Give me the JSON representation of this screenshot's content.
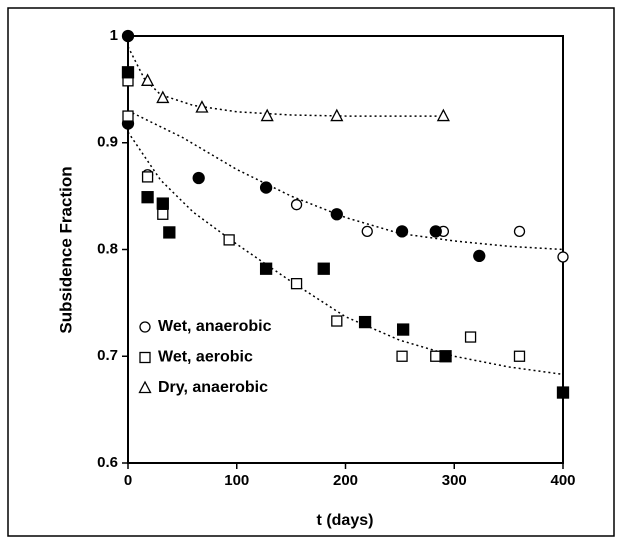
{
  "chart_data": {
    "type": "scatter",
    "y_label": "Subsidence Fraction",
    "x_label": "t (days)",
    "xlim": [
      0,
      400
    ],
    "xticks": [
      0,
      100,
      200,
      300,
      400
    ],
    "ylim": [
      0.6,
      1
    ],
    "yticks": [
      0.6,
      0.7,
      0.8,
      0.9,
      1
    ],
    "grid": false,
    "legend": "left",
    "series": [
      {
        "name": "Wet, anaerobic",
        "marker": "circle",
        "color": "#000000",
        "x": [
          18,
          155,
          220,
          290,
          360,
          400
        ],
        "values": [
          0.87,
          0.842,
          0.817,
          0.817,
          0.817,
          0.793
        ],
        "solid_x": [
          0,
          0,
          65,
          127,
          192,
          252,
          283,
          323
        ],
        "solid_values": [
          1.0,
          0.918,
          0.867,
          0.858,
          0.833,
          0.817,
          0.817,
          0.794
        ],
        "trend_x": [
          0,
          50,
          100,
          150,
          200,
          250,
          300,
          350,
          400
        ],
        "trend_values": [
          0.93,
          0.905,
          0.875,
          0.85,
          0.83,
          0.815,
          0.808,
          0.803,
          0.8
        ]
      },
      {
        "name": "Wet, aerobic",
        "marker": "square",
        "color": "#000000",
        "x": [
          0,
          0,
          18,
          32,
          93,
          155,
          192,
          252,
          283,
          315,
          360
        ],
        "values": [
          0.958,
          0.925,
          0.868,
          0.833,
          0.809,
          0.768,
          0.733,
          0.7,
          0.7,
          0.718,
          0.7
        ],
        "solid_x": [
          0,
          18,
          32,
          38,
          127,
          180,
          218,
          253,
          292,
          400
        ],
        "solid_values": [
          0.966,
          0.849,
          0.843,
          0.816,
          0.782,
          0.782,
          0.732,
          0.725,
          0.7,
          0.666
        ],
        "trend_x": [
          0,
          30,
          60,
          100,
          150,
          200,
          250,
          300,
          350,
          400
        ],
        "trend_values": [
          0.91,
          0.865,
          0.835,
          0.805,
          0.77,
          0.737,
          0.715,
          0.7,
          0.69,
          0.683
        ]
      },
      {
        "name": "Dry, anaerobic",
        "marker": "triangle",
        "color": "#000000",
        "x": [
          18,
          32,
          68,
          128,
          192,
          290
        ],
        "values": [
          0.958,
          0.942,
          0.933,
          0.925,
          0.925,
          0.925
        ],
        "solid_x": [],
        "solid_values": [],
        "trend_x": [
          0,
          15,
          30,
          60,
          100,
          150,
          200,
          290
        ],
        "trend_values": [
          0.99,
          0.96,
          0.945,
          0.935,
          0.929,
          0.926,
          0.925,
          0.925
        ]
      }
    ]
  }
}
